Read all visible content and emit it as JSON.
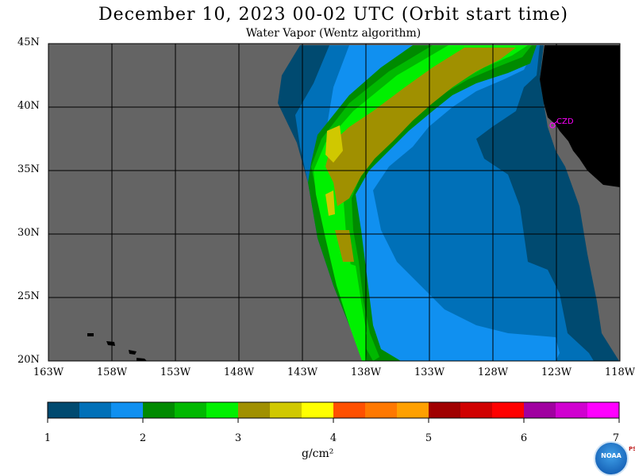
{
  "title": "December 10, 2023  00-02 UTC  (Orbit start time)",
  "subtitle": "Water Vapor (Wentz algorithm)",
  "lat_labels": [
    "45N",
    "40N",
    "35N",
    "30N",
    "25N",
    "20N"
  ],
  "lon_labels": [
    "163W",
    "158W",
    "153W",
    "148W",
    "143W",
    "138W",
    "133W",
    "128W",
    "123W",
    "118W"
  ],
  "station_label": "CZD",
  "colorbar": {
    "colors": [
      "#004a70",
      "#0070b8",
      "#1090f0",
      "#008a00",
      "#00b800",
      "#00f000",
      "#a09000",
      "#d0c800",
      "#ffff00",
      "#ff5000",
      "#ff7800",
      "#ffa000",
      "#a00000",
      "#d00000",
      "#ff0000",
      "#a000a0",
      "#d000d0",
      "#ff00ff"
    ],
    "tick_labels": [
      "1",
      "2",
      "3",
      "4",
      "5",
      "6",
      "7"
    ],
    "units": "g/cm²"
  },
  "logo_text": "NOAA",
  "psl_text": "PSL",
  "colors": {
    "no_data": "#646464",
    "land": "#000000",
    "grid": "#000000"
  }
}
